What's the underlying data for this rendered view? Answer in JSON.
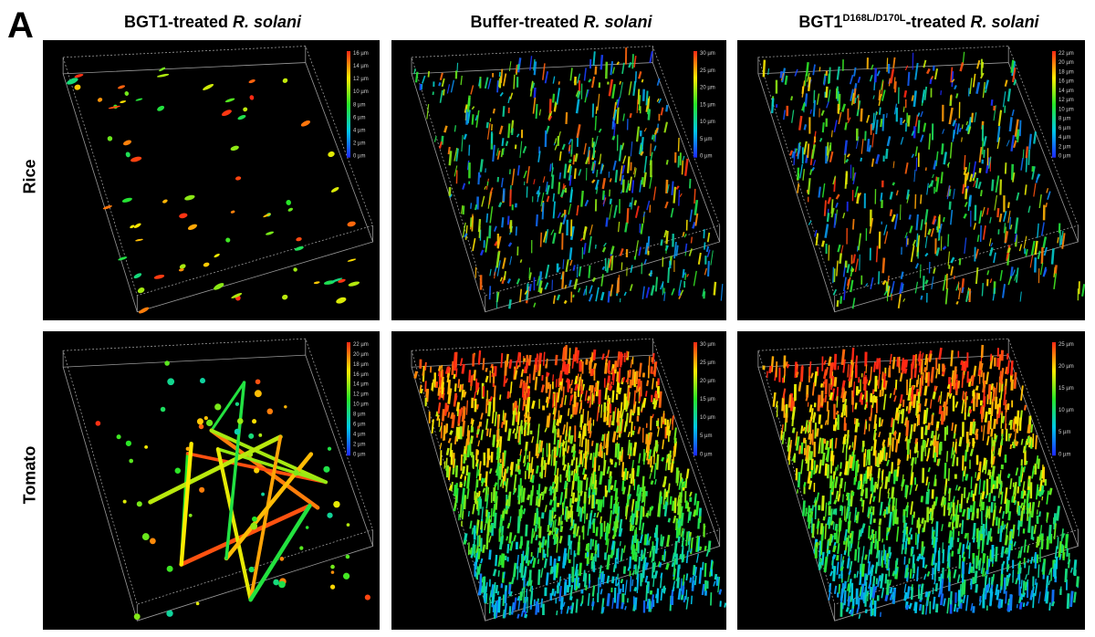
{
  "figure_label": "A",
  "columns": [
    {
      "prefix": "BGT1",
      "superscript": "",
      "suffix": "-treated ",
      "species": "R. solani"
    },
    {
      "prefix": "Buffer",
      "superscript": "",
      "suffix": "-treated ",
      "species": "R. solani"
    },
    {
      "prefix": "BGT1",
      "superscript": "D168L/D170L",
      "suffix": "-treated ",
      "species": "R. solani"
    }
  ],
  "rows": [
    {
      "label": "Rice"
    },
    {
      "label": "Tomato"
    }
  ],
  "panels": [
    {
      "id": "rice-bgt1",
      "scale_labels": [
        "16 µm",
        "14 µm",
        "12 µm",
        "10 µm",
        "8 µm",
        "6 µm",
        "4 µm",
        "2 µm",
        "0 µm"
      ],
      "density": "sparse"
    },
    {
      "id": "rice-buffer",
      "scale_labels": [
        "30 µm",
        "25 µm",
        "20 µm",
        "15 µm",
        "10 µm",
        "5 µm",
        "0 µm"
      ],
      "density": "medium"
    },
    {
      "id": "rice-mutant",
      "scale_labels": [
        "22 µm",
        "20 µm",
        "18 µm",
        "16 µm",
        "14 µm",
        "12 µm",
        "10 µm",
        "8 µm",
        "6 µm",
        "4 µm",
        "2 µm",
        "0 µm"
      ],
      "density": "medium"
    },
    {
      "id": "tomato-bgt1",
      "scale_labels": [
        "22 µm",
        "20 µm",
        "18 µm",
        "16 µm",
        "14 µm",
        "12 µm",
        "10 µm",
        "8 µm",
        "6 µm",
        "4 µm",
        "2 µm",
        "0 µm"
      ],
      "density": "network"
    },
    {
      "id": "tomato-buffer",
      "scale_labels": [
        "30 µm",
        "25 µm",
        "20 µm",
        "15 µm",
        "10 µm",
        "5 µm",
        "0 µm"
      ],
      "density": "dense"
    },
    {
      "id": "tomato-mutant",
      "scale_labels": [
        "25 µm",
        "20 µm",
        "15 µm",
        "10 µm",
        "5 µm",
        "0 µm"
      ],
      "density": "dense"
    }
  ]
}
